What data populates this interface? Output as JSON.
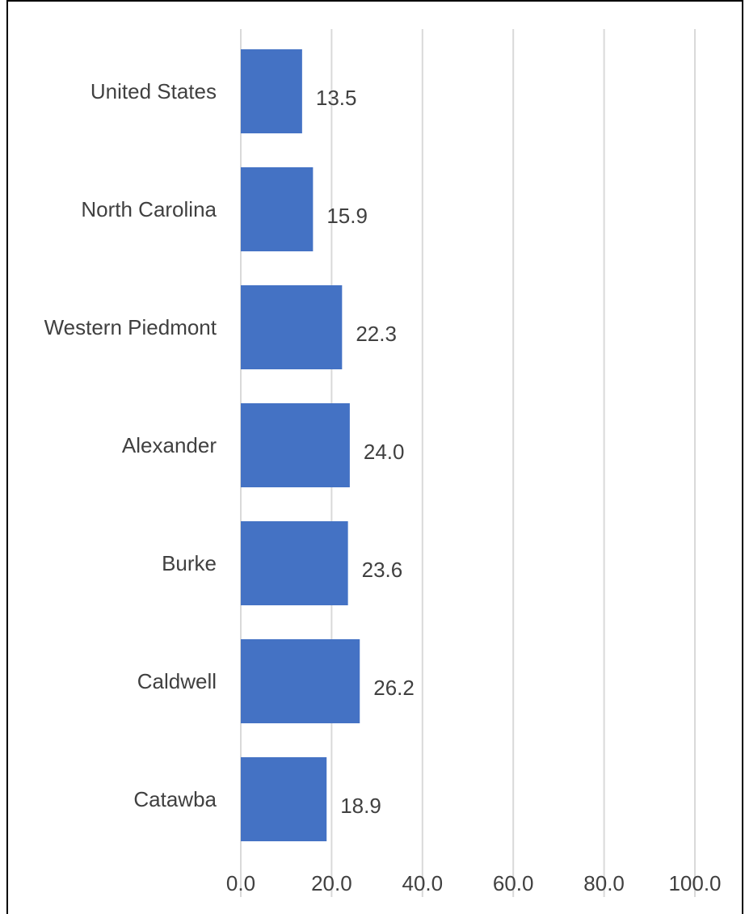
{
  "chart_data": {
    "type": "bar",
    "orientation": "horizontal",
    "categories": [
      "United States",
      "North Carolina",
      "Western Piedmont",
      "Alexander",
      "Burke",
      "Caldwell",
      "Catawba"
    ],
    "values": [
      13.5,
      15.9,
      22.3,
      24.0,
      23.6,
      26.2,
      18.9
    ],
    "value_labels": [
      "13.5",
      "15.9",
      "22.3",
      "24.0",
      "23.6",
      "26.2",
      "18.9"
    ],
    "xlim": [
      0,
      100
    ],
    "ticks": [
      0,
      20,
      40,
      60,
      80,
      100
    ],
    "tick_labels": [
      "0.0",
      "20.0",
      "40.0",
      "60.0",
      "80.0",
      "100.0"
    ],
    "grid": true,
    "bar_color": "#4472c4",
    "title": "",
    "xlabel": "",
    "ylabel": ""
  }
}
